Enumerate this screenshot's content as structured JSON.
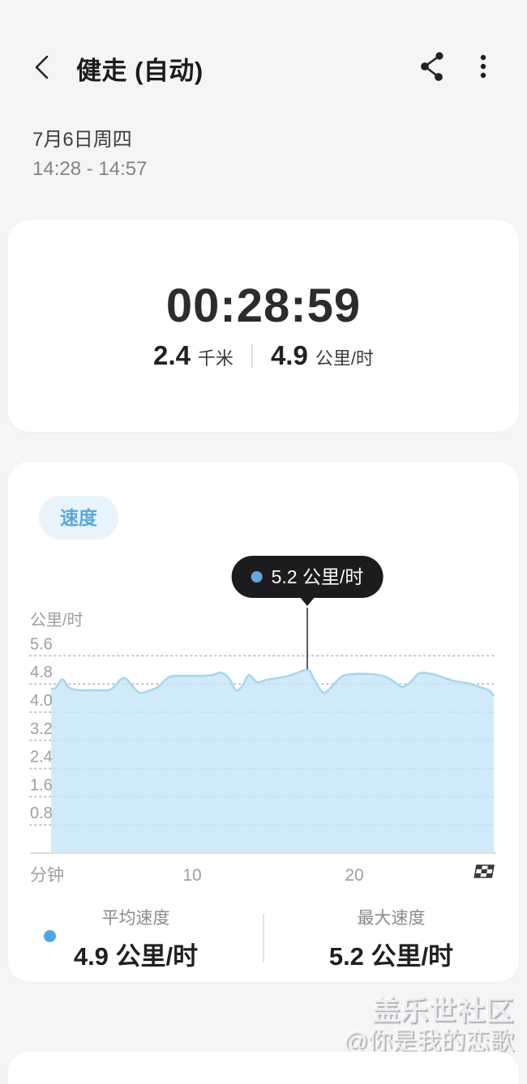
{
  "header": {
    "title": "健走 (自动)"
  },
  "session": {
    "date": "7月6日周四",
    "time_range": "14:28 - 14:57"
  },
  "summary": {
    "duration": "00:28:59",
    "distance_value": "2.4",
    "distance_unit": "千米",
    "speed_value": "4.9",
    "speed_unit": "公里/时"
  },
  "chart_card": {
    "chip_label": "速度",
    "tooltip_label": "5.2 公里/时",
    "stats": {
      "avg_label": "平均速度",
      "avg_value": "4.9 公里/时",
      "max_label": "最大速度",
      "max_value": "5.2 公里/时"
    }
  },
  "chart_data": {
    "type": "area",
    "title": "速度",
    "ylabel": "公里/时",
    "xlabel": "分钟",
    "yticks": [
      5.6,
      4.8,
      4.0,
      3.2,
      2.4,
      1.6,
      0.8
    ],
    "xticks": [
      10,
      20
    ],
    "ylim": [
      0,
      6.4
    ],
    "xlim": [
      0,
      29
    ],
    "grid": "dotted-horizontal",
    "legend_position": "none",
    "avg_speed_kmh": 4.9,
    "max_speed_kmh": 5.2,
    "annotations": {
      "max_point": {
        "x": 17.1,
        "y": 5.2,
        "label": "5.2 公里/时"
      }
    },
    "series": [
      {
        "name": "速度",
        "unit": "公里/时",
        "points": [
          [
            1.3,
            4.65
          ],
          [
            1.6,
            4.7
          ],
          [
            2.0,
            4.93
          ],
          [
            2.4,
            4.7
          ],
          [
            3.0,
            4.62
          ],
          [
            3.6,
            4.62
          ],
          [
            4.3,
            4.62
          ],
          [
            5.0,
            4.65
          ],
          [
            5.75,
            4.97
          ],
          [
            6.3,
            4.75
          ],
          [
            6.75,
            4.55
          ],
          [
            7.3,
            4.6
          ],
          [
            7.9,
            4.72
          ],
          [
            8.6,
            5.0
          ],
          [
            9.5,
            5.03
          ],
          [
            10.5,
            5.03
          ],
          [
            11.2,
            5.05
          ],
          [
            11.8,
            5.12
          ],
          [
            12.3,
            4.95
          ],
          [
            12.7,
            4.62
          ],
          [
            13.1,
            4.75
          ],
          [
            13.5,
            5.05
          ],
          [
            14.0,
            4.85
          ],
          [
            14.6,
            4.92
          ],
          [
            15.3,
            4.97
          ],
          [
            16.1,
            5.05
          ],
          [
            17.1,
            5.2
          ],
          [
            17.5,
            4.95
          ],
          [
            18.0,
            4.58
          ],
          [
            18.4,
            4.62
          ],
          [
            19.2,
            5.0
          ],
          [
            20.0,
            5.08
          ],
          [
            21.0,
            5.08
          ],
          [
            21.8,
            5.02
          ],
          [
            22.4,
            4.88
          ],
          [
            22.9,
            4.72
          ],
          [
            23.4,
            4.82
          ],
          [
            24.0,
            5.1
          ],
          [
            24.8,
            5.08
          ],
          [
            25.5,
            4.98
          ],
          [
            26.2,
            4.88
          ],
          [
            27.0,
            4.82
          ],
          [
            27.7,
            4.72
          ],
          [
            28.3,
            4.62
          ],
          [
            28.6,
            4.45
          ]
        ]
      }
    ],
    "colors": {
      "area_fill": "#c4e7f8",
      "area_stroke": "#a4d6ee",
      "grid": "#c3c3c6",
      "axis_text": "#9e9ea2",
      "baseline": "#dddddf",
      "connector": "#5c5c60",
      "accent_blue": "#4fa8e4",
      "tooltip_bg": "#1c1c1e"
    }
  },
  "watermark": {
    "line1": "盖乐世社区",
    "line2": "@你是我的恋歌"
  }
}
